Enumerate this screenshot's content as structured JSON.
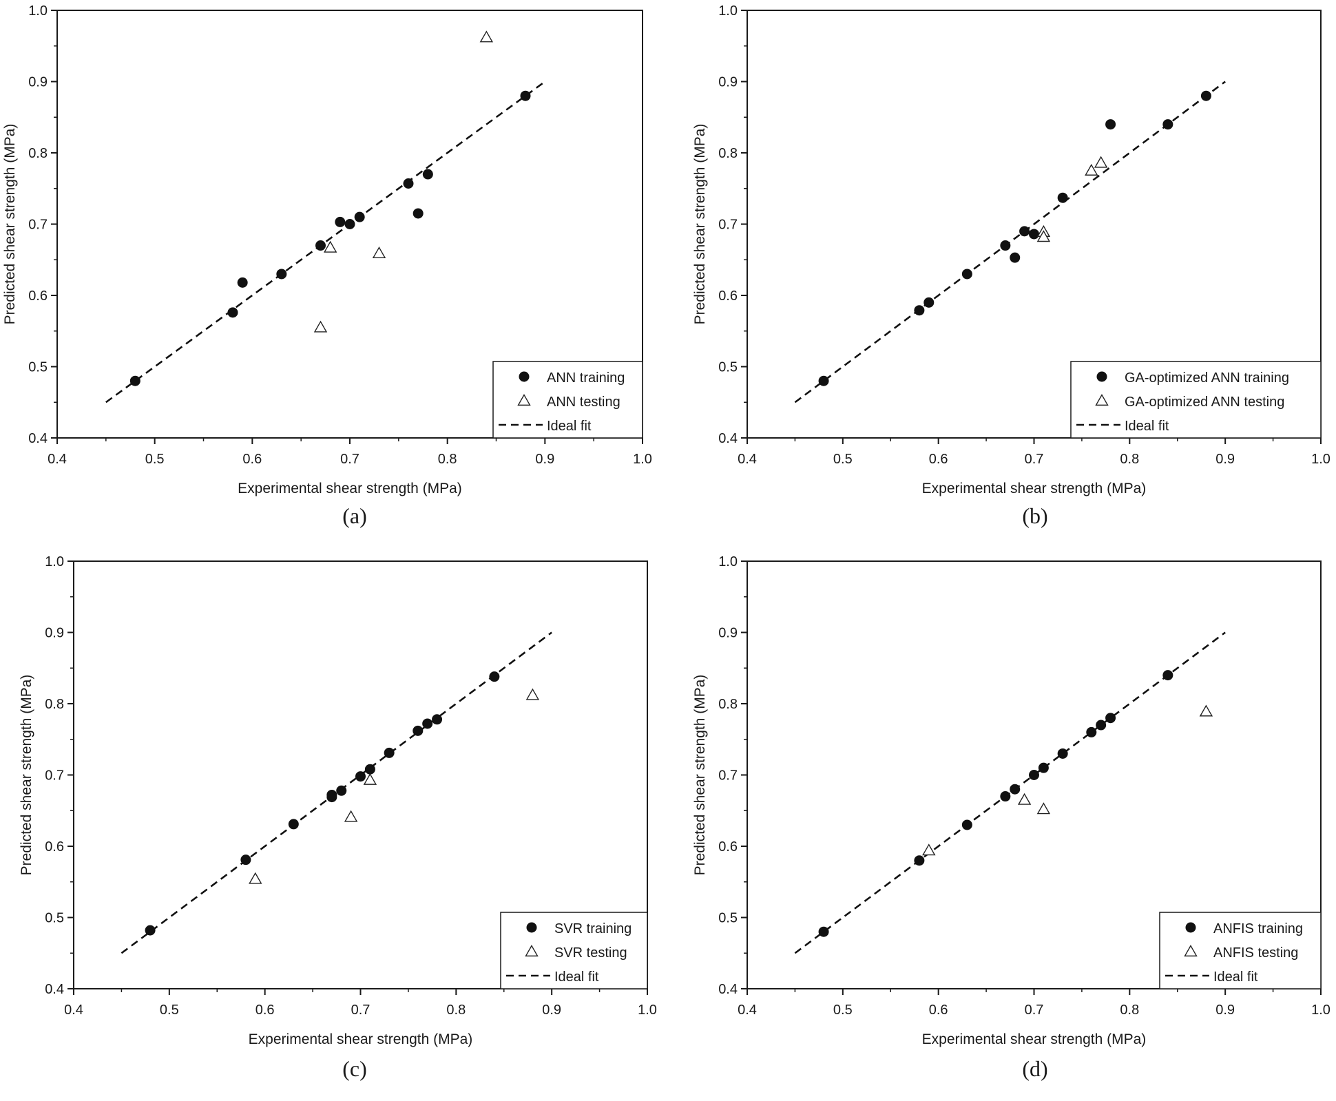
{
  "chart_data": [
    {
      "type": "scatter",
      "panel_label": "(a)",
      "xlabel": "Experimental shear strength (MPa)",
      "ylabel": "Predicted shear strength (MPa)",
      "xlim": [
        0.4,
        1.0
      ],
      "ylim": [
        0.4,
        1.0
      ],
      "xticks": [
        "0.4",
        "0.5",
        "0.6",
        "0.7",
        "0.8",
        "0.9",
        "1.0"
      ],
      "yticks": [
        "0.4",
        "0.5",
        "0.6",
        "0.7",
        "0.8",
        "0.9",
        "1.0"
      ],
      "grid": false,
      "legend_position": "bottom-right",
      "series": [
        {
          "name": "ANN training",
          "marker": "filled-circle",
          "points": [
            [
              0.48,
              0.48
            ],
            [
              0.58,
              0.576
            ],
            [
              0.59,
              0.618
            ],
            [
              0.63,
              0.63
            ],
            [
              0.67,
              0.67
            ],
            [
              0.69,
              0.703
            ],
            [
              0.7,
              0.7
            ],
            [
              0.71,
              0.71
            ],
            [
              0.76,
              0.757
            ],
            [
              0.77,
              0.715
            ],
            [
              0.78,
              0.77
            ],
            [
              0.88,
              0.88
            ]
          ]
        },
        {
          "name": "ANN testing",
          "marker": "open-triangle",
          "points": [
            [
              0.67,
              0.555
            ],
            [
              0.68,
              0.667
            ],
            [
              0.73,
              0.659
            ],
            [
              0.84,
              0.962
            ]
          ]
        },
        {
          "name": "Ideal fit",
          "marker": "dashed-line",
          "points": [
            [
              0.45,
              0.45
            ],
            [
              0.9,
              0.9
            ]
          ]
        }
      ]
    },
    {
      "type": "scatter",
      "panel_label": "(b)",
      "xlabel": "Experimental shear strength (MPa)",
      "ylabel": "Predicted shear strength (MPa)",
      "xlim": [
        0.4,
        1.0
      ],
      "ylim": [
        0.4,
        1.0
      ],
      "xticks": [
        "0.4",
        "0.5",
        "0.6",
        "0.7",
        "0.8",
        "0.9",
        "1.0"
      ],
      "yticks": [
        "0.4",
        "0.5",
        "0.6",
        "0.7",
        "0.8",
        "0.9",
        "1.0"
      ],
      "grid": false,
      "legend_position": "bottom-right",
      "series": [
        {
          "name": "GA-optimized ANN training",
          "marker": "filled-circle",
          "points": [
            [
              0.48,
              0.48
            ],
            [
              0.58,
              0.579
            ],
            [
              0.59,
              0.59
            ],
            [
              0.63,
              0.63
            ],
            [
              0.67,
              0.67
            ],
            [
              0.68,
              0.653
            ],
            [
              0.69,
              0.69
            ],
            [
              0.7,
              0.686
            ],
            [
              0.73,
              0.737
            ],
            [
              0.78,
              0.84
            ],
            [
              0.84,
              0.84
            ],
            [
              0.88,
              0.88
            ]
          ]
        },
        {
          "name": "GA-optimized ANN testing",
          "marker": "open-triangle",
          "points": [
            [
              0.71,
              0.689
            ],
            [
              0.71,
              0.682
            ],
            [
              0.76,
              0.775
            ],
            [
              0.77,
              0.786
            ]
          ]
        },
        {
          "name": "Ideal fit",
          "marker": "dashed-line",
          "points": [
            [
              0.45,
              0.45
            ],
            [
              0.9,
              0.9
            ]
          ]
        }
      ]
    },
    {
      "type": "scatter",
      "panel_label": "(c)",
      "xlabel": "Experimental shear strength (MPa)",
      "ylabel": "Predicted shear strength (MPa)",
      "xlim": [
        0.4,
        1.0
      ],
      "ylim": [
        0.4,
        1.0
      ],
      "xticks": [
        "0.4",
        "0.5",
        "0.6",
        "0.7",
        "0.8",
        "0.9",
        "1.0"
      ],
      "yticks": [
        "0.4",
        "0.5",
        "0.6",
        "0.7",
        "0.8",
        "0.9",
        "1.0"
      ],
      "grid": false,
      "legend_position": "bottom-right",
      "series": [
        {
          "name": "SVR training",
          "marker": "filled-circle",
          "points": [
            [
              0.48,
              0.482
            ],
            [
              0.58,
              0.581
            ],
            [
              0.63,
              0.631
            ],
            [
              0.67,
              0.669
            ],
            [
              0.67,
              0.672
            ],
            [
              0.68,
              0.678
            ],
            [
              0.7,
              0.698
            ],
            [
              0.71,
              0.708
            ],
            [
              0.73,
              0.731
            ],
            [
              0.76,
              0.762
            ],
            [
              0.77,
              0.772
            ],
            [
              0.78,
              0.778
            ],
            [
              0.84,
              0.838
            ]
          ]
        },
        {
          "name": "SVR testing",
          "marker": "open-triangle",
          "points": [
            [
              0.59,
              0.554
            ],
            [
              0.69,
              0.641
            ],
            [
              0.71,
              0.693
            ],
            [
              0.88,
              0.812
            ]
          ]
        },
        {
          "name": "Ideal fit",
          "marker": "dashed-line",
          "points": [
            [
              0.45,
              0.45
            ],
            [
              0.9,
              0.9
            ]
          ]
        }
      ]
    },
    {
      "type": "scatter",
      "panel_label": "(d)",
      "xlabel": "Experimental shear strength (MPa)",
      "ylabel": "Predicted shear strength (MPa)",
      "xlim": [
        0.4,
        1.0
      ],
      "ylim": [
        0.4,
        1.0
      ],
      "xticks": [
        "0.4",
        "0.5",
        "0.6",
        "0.7",
        "0.8",
        "0.9",
        "1.0"
      ],
      "yticks": [
        "0.4",
        "0.5",
        "0.6",
        "0.7",
        "0.8",
        "0.9",
        "1.0"
      ],
      "grid": false,
      "legend_position": "bottom-right",
      "series": [
        {
          "name": "ANFIS training",
          "marker": "filled-circle",
          "points": [
            [
              0.48,
              0.48
            ],
            [
              0.58,
              0.58
            ],
            [
              0.63,
              0.63
            ],
            [
              0.67,
              0.67
            ],
            [
              0.68,
              0.68
            ],
            [
              0.7,
              0.7
            ],
            [
              0.71,
              0.71
            ],
            [
              0.73,
              0.73
            ],
            [
              0.76,
              0.76
            ],
            [
              0.77,
              0.77
            ],
            [
              0.78,
              0.78
            ],
            [
              0.84,
              0.84
            ]
          ]
        },
        {
          "name": "ANFIS testing",
          "marker": "open-triangle",
          "points": [
            [
              0.59,
              0.594
            ],
            [
              0.69,
              0.665
            ],
            [
              0.71,
              0.652
            ],
            [
              0.88,
              0.789
            ]
          ]
        },
        {
          "name": "Ideal fit",
          "marker": "dashed-line",
          "points": [
            [
              0.45,
              0.45
            ],
            [
              0.9,
              0.9
            ]
          ]
        }
      ]
    }
  ]
}
